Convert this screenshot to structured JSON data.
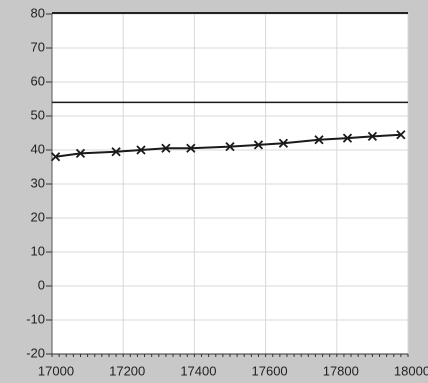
{
  "chart_data": {
    "type": "line",
    "x": [
      17010,
      17080,
      17180,
      17250,
      17320,
      17390,
      17500,
      17580,
      17650,
      17750,
      17830,
      17900,
      17980
    ],
    "series": [
      {
        "name": null,
        "color": "#1a1a1a",
        "marker": "x",
        "values": [
          38,
          39,
          39.5,
          40,
          40.5,
          40.5,
          41,
          41.5,
          42,
          43,
          43.5,
          44,
          44.5
        ]
      }
    ],
    "reference_lines": [
      {
        "value": 54,
        "color": "#1a1a1a"
      }
    ],
    "xlim": [
      17000,
      18000
    ],
    "xticks": [
      17000,
      17200,
      17400,
      17600,
      17800,
      18000
    ],
    "ylim": [
      -20,
      80
    ],
    "yticks": [
      -20,
      -10,
      0,
      10,
      20,
      30,
      40,
      50,
      60,
      70,
      80
    ],
    "grid": true
  }
}
